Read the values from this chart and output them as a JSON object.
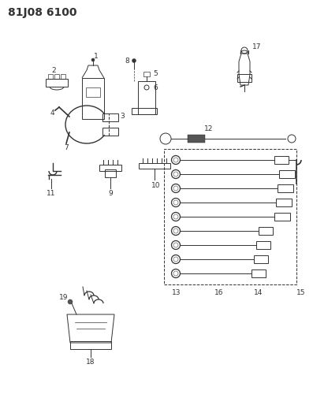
{
  "title": "81J08 6100",
  "bg_color": "#ffffff",
  "line_color": "#333333",
  "label_color": "#333333",
  "title_fontsize": 10,
  "label_fontsize": 6.5,
  "fig_w": 3.97,
  "fig_h": 5.33,
  "dpi": 100,
  "xlim": [
    0,
    397
  ],
  "ylim": [
    0,
    533
  ]
}
